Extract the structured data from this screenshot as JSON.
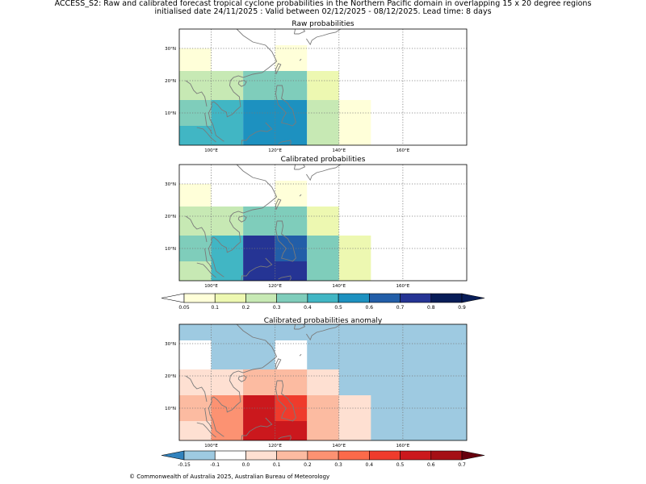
{
  "header": {
    "title_line1": "ACCESS_S2: Raw and calibrated forecast tropical cyclone probabilities in the Northern Pacific domain in overlapping 15 x 20 degree regions",
    "title_line2": "initialised date 24/11/2025 :  Valid between 02/12/2025 - 08/12/2025. Lead time: 8 days"
  },
  "footer": {
    "copyright": "© Commonwealth of Australia 2025, Australian Bureau of Meteorology"
  },
  "chart_data": [
    {
      "type": "heatmap",
      "title": "Raw probabilities",
      "x_ticks": [
        "100°E",
        "120°E",
        "140°E",
        "160°E"
      ],
      "y_ticks": [
        "30°N",
        "20°N",
        "10°N"
      ],
      "lon_range": [
        90,
        180
      ],
      "lat_range": [
        0,
        36
      ],
      "cells": [
        {
          "lon0": 90,
          "lon1": 100,
          "lat0": 28,
          "lat1": 30,
          "v": 0.05
        },
        {
          "lon0": 120,
          "lon1": 130,
          "lat0": 28,
          "lat1": 31,
          "v": 0.05
        },
        {
          "lon0": 90,
          "lon1": 100,
          "lat0": 23,
          "lat1": 28,
          "v": 0.05
        },
        {
          "lon0": 120,
          "lon1": 130,
          "lat0": 23,
          "lat1": 28,
          "v": 0.05
        },
        {
          "lon0": 90,
          "lon1": 110,
          "lat0": 14,
          "lat1": 23,
          "v": 0.2
        },
        {
          "lon0": 110,
          "lon1": 130,
          "lat0": 19,
          "lat1": 23,
          "v": 0.3
        },
        {
          "lon0": 130,
          "lon1": 140,
          "lat0": 14,
          "lat1": 23,
          "v": 0.1
        },
        {
          "lon0": 90,
          "lon1": 100,
          "lat0": 6,
          "lat1": 14,
          "v": 0.3
        },
        {
          "lon0": 100,
          "lon1": 110,
          "lat0": 6,
          "lat1": 14,
          "v": 0.4
        },
        {
          "lon0": 110,
          "lon1": 130,
          "lat0": 14,
          "lat1": 19,
          "v": 0.3
        },
        {
          "lon0": 110,
          "lon1": 130,
          "lat0": 6,
          "lat1": 14,
          "v": 0.5
        },
        {
          "lon0": 130,
          "lon1": 140,
          "lat0": 6,
          "lat1": 14,
          "v": 0.2
        },
        {
          "lon0": 140,
          "lon1": 150,
          "lat0": 0,
          "lat1": 14,
          "v": 0.05
        },
        {
          "lon0": 90,
          "lon1": 110,
          "lat0": 0,
          "lat1": 6,
          "v": 0.4
        },
        {
          "lon0": 110,
          "lon1": 130,
          "lat0": 0,
          "lat1": 6,
          "v": 0.5
        },
        {
          "lon0": 130,
          "lon1": 140,
          "lat0": 0,
          "lat1": 6,
          "v": 0.2
        }
      ]
    },
    {
      "type": "heatmap",
      "title": "Calibrated probabilities",
      "x_ticks": [
        "100°E",
        "120°E",
        "140°E",
        "160°E"
      ],
      "y_ticks": [
        "30°N",
        "20°N",
        "10°N"
      ],
      "lon_range": [
        90,
        180
      ],
      "lat_range": [
        0,
        36
      ],
      "cells": [
        {
          "lon0": 90,
          "lon1": 100,
          "lat0": 28,
          "lat1": 30,
          "v": 0.05
        },
        {
          "lon0": 120,
          "lon1": 130,
          "lat0": 28,
          "lat1": 31,
          "v": 0.05
        },
        {
          "lon0": 90,
          "lon1": 100,
          "lat0": 23,
          "lat1": 28,
          "v": 0.05
        },
        {
          "lon0": 120,
          "lon1": 130,
          "lat0": 23,
          "lat1": 28,
          "v": 0.05
        },
        {
          "lon0": 90,
          "lon1": 110,
          "lat0": 14,
          "lat1": 23,
          "v": 0.2
        },
        {
          "lon0": 110,
          "lon1": 130,
          "lat0": 19,
          "lat1": 23,
          "v": 0.3
        },
        {
          "lon0": 130,
          "lon1": 140,
          "lat0": 14,
          "lat1": 23,
          "v": 0.1
        },
        {
          "lon0": 90,
          "lon1": 100,
          "lat0": 6,
          "lat1": 14,
          "v": 0.3
        },
        {
          "lon0": 100,
          "lon1": 110,
          "lat0": 6,
          "lat1": 14,
          "v": 0.4
        },
        {
          "lon0": 110,
          "lon1": 130,
          "lat0": 14,
          "lat1": 19,
          "v": 0.3
        },
        {
          "lon0": 110,
          "lon1": 120,
          "lat0": 6,
          "lat1": 14,
          "v": 0.7
        },
        {
          "lon0": 120,
          "lon1": 130,
          "lat0": 6,
          "lat1": 14,
          "v": 0.6
        },
        {
          "lon0": 130,
          "lon1": 140,
          "lat0": 6,
          "lat1": 14,
          "v": 0.3
        },
        {
          "lon0": 140,
          "lon1": 150,
          "lat0": 0,
          "lat1": 14,
          "v": 0.1
        },
        {
          "lon0": 90,
          "lon1": 100,
          "lat0": 0,
          "lat1": 6,
          "v": 0.2
        },
        {
          "lon0": 100,
          "lon1": 110,
          "lat0": 0,
          "lat1": 6,
          "v": 0.4
        },
        {
          "lon0": 110,
          "lon1": 130,
          "lat0": 0,
          "lat1": 6,
          "v": 0.7
        },
        {
          "lon0": 130,
          "lon1": 140,
          "lat0": 0,
          "lat1": 6,
          "v": 0.3
        }
      ]
    },
    {
      "type": "heatmap",
      "title": "Calibrated probabilities anomaly",
      "x_ticks": [
        "100°E",
        "120°E",
        "140°E",
        "160°E"
      ],
      "y_ticks": [
        "30°N",
        "20°N",
        "10°N"
      ],
      "lon_range": [
        90,
        180
      ],
      "lat_range": [
        0,
        36
      ],
      "background_value": -0.15,
      "cells": [
        {
          "lon0": 90,
          "lon1": 100,
          "lat0": 22,
          "lat1": 31,
          "v": -0.1
        },
        {
          "lon0": 120,
          "lon1": 130,
          "lat0": 22,
          "lat1": 31,
          "v": -0.1
        },
        {
          "lon0": 90,
          "lon1": 100,
          "lat0": 14,
          "lat1": 22,
          "v": 0.05
        },
        {
          "lon0": 100,
          "lon1": 110,
          "lat0": 14,
          "lat1": 22,
          "v": 0.05
        },
        {
          "lon0": 110,
          "lon1": 130,
          "lat0": 14,
          "lat1": 22,
          "v": 0.15
        },
        {
          "lon0": 130,
          "lon1": 140,
          "lat0": 14,
          "lat1": 22,
          "v": 0.0
        },
        {
          "lon0": 90,
          "lon1": 100,
          "lat0": 6,
          "lat1": 14,
          "v": 0.15
        },
        {
          "lon0": 100,
          "lon1": 110,
          "lat0": 6,
          "lat1": 14,
          "v": 0.25
        },
        {
          "lon0": 110,
          "lon1": 120,
          "lat0": 6,
          "lat1": 14,
          "v": 0.55
        },
        {
          "lon0": 120,
          "lon1": 130,
          "lat0": 6,
          "lat1": 14,
          "v": 0.45
        },
        {
          "lon0": 130,
          "lon1": 140,
          "lat0": 6,
          "lat1": 14,
          "v": 0.15
        },
        {
          "lon0": 140,
          "lon1": 150,
          "lat0": 6,
          "lat1": 14,
          "v": 0.0
        },
        {
          "lon0": 90,
          "lon1": 100,
          "lat0": 0,
          "lat1": 6,
          "v": 0.05
        },
        {
          "lon0": 100,
          "lon1": 110,
          "lat0": 0,
          "lat1": 6,
          "v": 0.25
        },
        {
          "lon0": 110,
          "lon1": 130,
          "lat0": 0,
          "lat1": 6,
          "v": 0.55
        },
        {
          "lon0": 130,
          "lon1": 140,
          "lat0": 0,
          "lat1": 6,
          "v": 0.15
        },
        {
          "lon0": 140,
          "lon1": 150,
          "lat0": 0,
          "lat1": 6,
          "v": 0.0
        }
      ]
    }
  ],
  "colorbars": {
    "probability": {
      "labels": [
        "0.05",
        "0.1",
        "0.2",
        "0.3",
        "0.4",
        "0.5",
        "0.6",
        "0.7",
        "0.8",
        "0.9"
      ],
      "bounds": [
        0.05,
        0.1,
        0.2,
        0.3,
        0.4,
        0.5,
        0.6,
        0.7,
        0.8,
        0.9
      ],
      "colors": [
        "#ffffd9",
        "#edf8b1",
        "#c7e9b4",
        "#7fcdbb",
        "#41b6c4",
        "#1d91c0",
        "#225ea8",
        "#253494",
        "#081d58"
      ],
      "under_color": "#ffffff",
      "over_color": "#081d58"
    },
    "anomaly": {
      "labels": [
        "-0.15",
        "-0.1",
        "0.0",
        "0.1",
        "0.2",
        "0.3",
        "0.4",
        "0.5",
        "0.6",
        "0.7"
      ],
      "bounds": [
        -0.15,
        -0.1,
        0.0,
        0.1,
        0.2,
        0.3,
        0.4,
        0.5,
        0.6,
        0.7
      ],
      "colors": [
        "#9ecae1",
        "#ffffff",
        "#fee0d2",
        "#fcbba1",
        "#fc9272",
        "#fb6a4a",
        "#ef3b2c",
        "#cb181d",
        "#a50f15"
      ],
      "under_color": "#3182bd",
      "over_color": "#67000d"
    }
  }
}
